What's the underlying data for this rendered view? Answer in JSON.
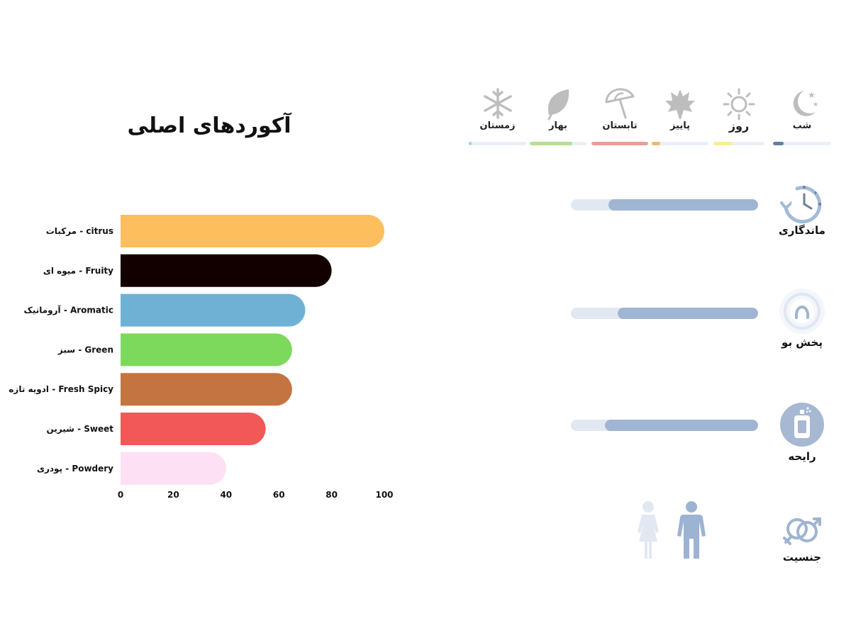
{
  "chart_data": {
    "type": "bar",
    "orientation": "horizontal",
    "title": "آکوردهای اصلی",
    "categories": [
      "مرکبات - citrus",
      "میوه ای - Fruity",
      "آروماتیک - Aromatic",
      "سبز - Green",
      "ادویه تازه - Fresh Spicy",
      "شیرین - Sweet",
      "پودری - Powdery"
    ],
    "values": [
      100,
      80,
      70,
      65,
      65,
      55,
      40
    ],
    "colors": [
      "#fdbf5d",
      "#120000",
      "#6fb1d4",
      "#7dd95c",
      "#c47441",
      "#f25858",
      "#fde0f3"
    ],
    "xlim": [
      0,
      100
    ],
    "xticks": [
      0,
      20,
      40,
      60,
      80,
      100
    ],
    "xticks_labels": [
      "0",
      "20",
      "40",
      "60",
      "80",
      "100"
    ],
    "grid": false,
    "legend": "none"
  },
  "seasons": [
    {
      "id": "night",
      "label": "شب",
      "level": 0.18,
      "color": "#5e7ea6",
      "icon": "moon-stars-icon"
    },
    {
      "id": "day",
      "label": "روز",
      "level": 0.38,
      "color": "#f9ee95",
      "icon": "sun-icon"
    },
    {
      "id": "autumn",
      "label": "پاییز",
      "level": 0.15,
      "color": "#f2b870",
      "icon": "maple-leaf-icon"
    },
    {
      "id": "summer",
      "label": "تابستان",
      "level": 1.0,
      "color": "#ec9d9a",
      "icon": "beach-umbrella-icon"
    },
    {
      "id": "spring",
      "label": "بهار",
      "level": 0.75,
      "color": "#b6df92",
      "icon": "leaf-icon"
    },
    {
      "id": "winter",
      "label": "زمستان",
      "level": 0.05,
      "color": "#a3d0ea",
      "icon": "snowflake-icon"
    }
  ],
  "attributes": [
    {
      "id": "longevity",
      "label": "ماندگاری",
      "level": 0.8,
      "icon": "clock-icon"
    },
    {
      "id": "sillage",
      "label": "پخش بو",
      "level": 0.75,
      "icon": "sillage-icon"
    },
    {
      "id": "projection",
      "label": "رایحه",
      "level": 0.82,
      "icon": "perfume-bottle-icon"
    }
  ],
  "gender": {
    "label": "جنسیت",
    "female_level": 0.25,
    "male_level": 0.75,
    "active_color": "#9cb3d2",
    "inactive_color": "#e2e8f2",
    "icon": "gender-icon"
  }
}
